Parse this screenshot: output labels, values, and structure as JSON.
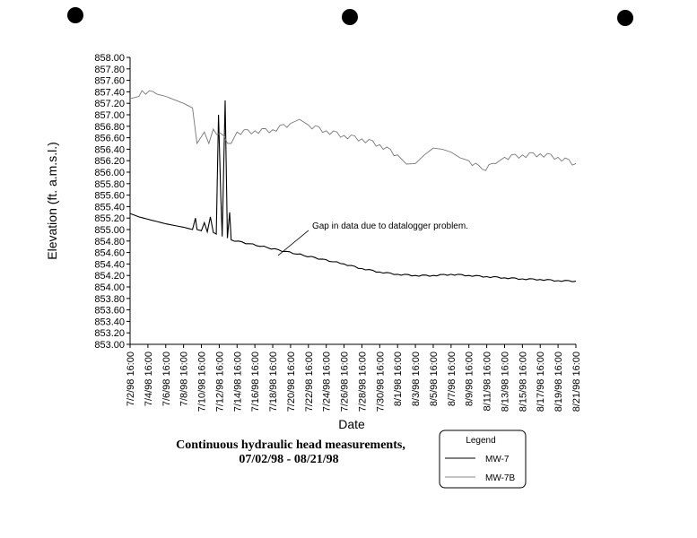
{
  "chart_data": {
    "type": "line",
    "ylabel": "Elevation (ft. a.m.s.l.)",
    "xlabel": "Date",
    "ylim": [
      853.0,
      858.0
    ],
    "ytick_step": 0.2,
    "xlim": [
      "1998-07-02T16:00",
      "1998-08-21T16:00"
    ],
    "x_ticks": [
      "7/2/98 16:00",
      "7/4/98 16:00",
      "7/6/98 16:00",
      "7/8/98 16:00",
      "7/10/98 16:00",
      "7/12/98 16:00",
      "7/14/98 16:00",
      "7/16/98 16:00",
      "7/18/98 16:00",
      "7/20/98 16:00",
      "7/22/98 16:00",
      "7/24/98 16:00",
      "7/26/98 16:00",
      "7/28/98 16:00",
      "7/30/98 16:00",
      "8/1/98 16:00",
      "8/3/98 16:00",
      "8/5/98 16:00",
      "8/7/98 16:00",
      "8/9/98 16:00",
      "8/11/98 16:00",
      "8/13/98 16:00",
      "8/15/98 16:00",
      "8/17/98 16:00",
      "8/19/98 16:00",
      "8/21/98 16:00"
    ],
    "grid": false,
    "series": [
      {
        "name": "MW-7",
        "color": "#000000",
        "points": [
          [
            "1998-07-02T16:00",
            855.28
          ],
          [
            "1998-07-03T16:00",
            855.22
          ],
          [
            "1998-07-04T16:00",
            855.18
          ],
          [
            "1998-07-05T16:00",
            855.14
          ],
          [
            "1998-07-06T16:00",
            855.1
          ],
          [
            "1998-07-07T16:00",
            855.07
          ],
          [
            "1998-07-08T16:00",
            855.04
          ],
          [
            "1998-07-09T16:00",
            855.0
          ],
          [
            "1998-07-10T00:00",
            855.2
          ],
          [
            "1998-07-10T04:00",
            855.0
          ],
          [
            "1998-07-10T16:00",
            854.98
          ],
          [
            "1998-07-11T00:00",
            855.12
          ],
          [
            "1998-07-11T08:00",
            854.96
          ],
          [
            "1998-07-11T16:00",
            855.22
          ],
          [
            "1998-07-12T00:00",
            854.95
          ],
          [
            "1998-07-12T08:00",
            854.92
          ],
          [
            "1998-07-12T14:00",
            857.0
          ],
          [
            "1998-07-12T20:00",
            855.6
          ],
          [
            "1998-07-13T00:00",
            854.88
          ],
          [
            "1998-07-13T08:00",
            857.25
          ],
          [
            "1998-07-13T14:00",
            854.85
          ],
          [
            "1998-07-13T20:00",
            855.3
          ],
          [
            "1998-07-14T00:00",
            854.82
          ],
          [
            "1998-07-26T16:00",
            854.4
          ],
          [
            "1998-07-28T16:00",
            854.32
          ],
          [
            "1998-07-30T16:00",
            854.26
          ],
          [
            "1998-08-01T16:00",
            854.22
          ],
          [
            "1998-08-03T16:00",
            854.2
          ],
          [
            "1998-08-05T16:00",
            854.2
          ],
          [
            "1998-08-07T16:00",
            854.22
          ],
          [
            "1998-08-09T16:00",
            854.2
          ],
          [
            "1998-08-11T16:00",
            854.18
          ],
          [
            "1998-08-13T16:00",
            854.16
          ],
          [
            "1998-08-15T16:00",
            854.14
          ],
          [
            "1998-08-17T16:00",
            854.13
          ],
          [
            "1998-08-19T16:00",
            854.11
          ],
          [
            "1998-08-21T16:00",
            854.1
          ]
        ]
      },
      {
        "name": "MW-7B",
        "color": "#777777",
        "points": [
          [
            "1998-07-02T16:00",
            857.28
          ],
          [
            "1998-07-03T16:00",
            857.32
          ],
          [
            "1998-07-04T00:00",
            857.42
          ],
          [
            "1998-07-05T16:00",
            857.36
          ],
          [
            "1998-07-06T16:00",
            857.32
          ],
          [
            "1998-07-07T16:00",
            857.26
          ],
          [
            "1998-07-08T16:00",
            857.2
          ],
          [
            "1998-07-09T16:00",
            857.12
          ],
          [
            "1998-07-10T04:00",
            856.5
          ],
          [
            "1998-07-11T00:00",
            856.7
          ],
          [
            "1998-07-11T12:00",
            856.5
          ],
          [
            "1998-07-12T00:00",
            856.75
          ],
          [
            "1998-07-14T00:00",
            856.5
          ],
          [
            "1998-07-14T16:00",
            856.7
          ],
          [
            "1998-07-16T16:00",
            856.72
          ],
          [
            "1998-07-18T16:00",
            856.74
          ],
          [
            "1998-07-20T16:00",
            856.85
          ],
          [
            "1998-07-21T16:00",
            856.92
          ],
          [
            "1998-07-22T16:00",
            856.82
          ],
          [
            "1998-07-24T16:00",
            856.72
          ],
          [
            "1998-07-26T16:00",
            856.64
          ],
          [
            "1998-07-28T16:00",
            856.58
          ],
          [
            "1998-07-30T16:00",
            856.48
          ],
          [
            "1998-08-01T16:00",
            856.3
          ],
          [
            "1998-08-02T16:00",
            856.14
          ],
          [
            "1998-08-03T16:00",
            856.15
          ],
          [
            "1998-08-04T16:00",
            856.3
          ],
          [
            "1998-08-05T16:00",
            856.42
          ],
          [
            "1998-08-06T16:00",
            856.4
          ],
          [
            "1998-08-07T16:00",
            856.35
          ],
          [
            "1998-08-08T16:00",
            856.25
          ],
          [
            "1998-08-09T16:00",
            856.2
          ],
          [
            "1998-08-11T04:00",
            856.05
          ],
          [
            "1998-08-12T16:00",
            856.15
          ],
          [
            "1998-08-13T16:00",
            856.26
          ],
          [
            "1998-08-15T16:00",
            856.3
          ],
          [
            "1998-08-17T16:00",
            856.32
          ],
          [
            "1998-08-19T16:00",
            856.26
          ],
          [
            "1998-08-21T16:00",
            856.15
          ]
        ]
      }
    ],
    "annotations": [
      {
        "text": "Gap in data due to datalogger problem.",
        "x": "1998-07-19T16:00",
        "y": 854.86
      }
    ],
    "legend": {
      "title": "Legend",
      "placement": "bottom-right",
      "entries": [
        "MW-7",
        "MW-7B"
      ]
    }
  },
  "caption": {
    "line1": "Continuous hydraulic head measurements,",
    "line2": "07/02/98 - 08/21/98"
  }
}
